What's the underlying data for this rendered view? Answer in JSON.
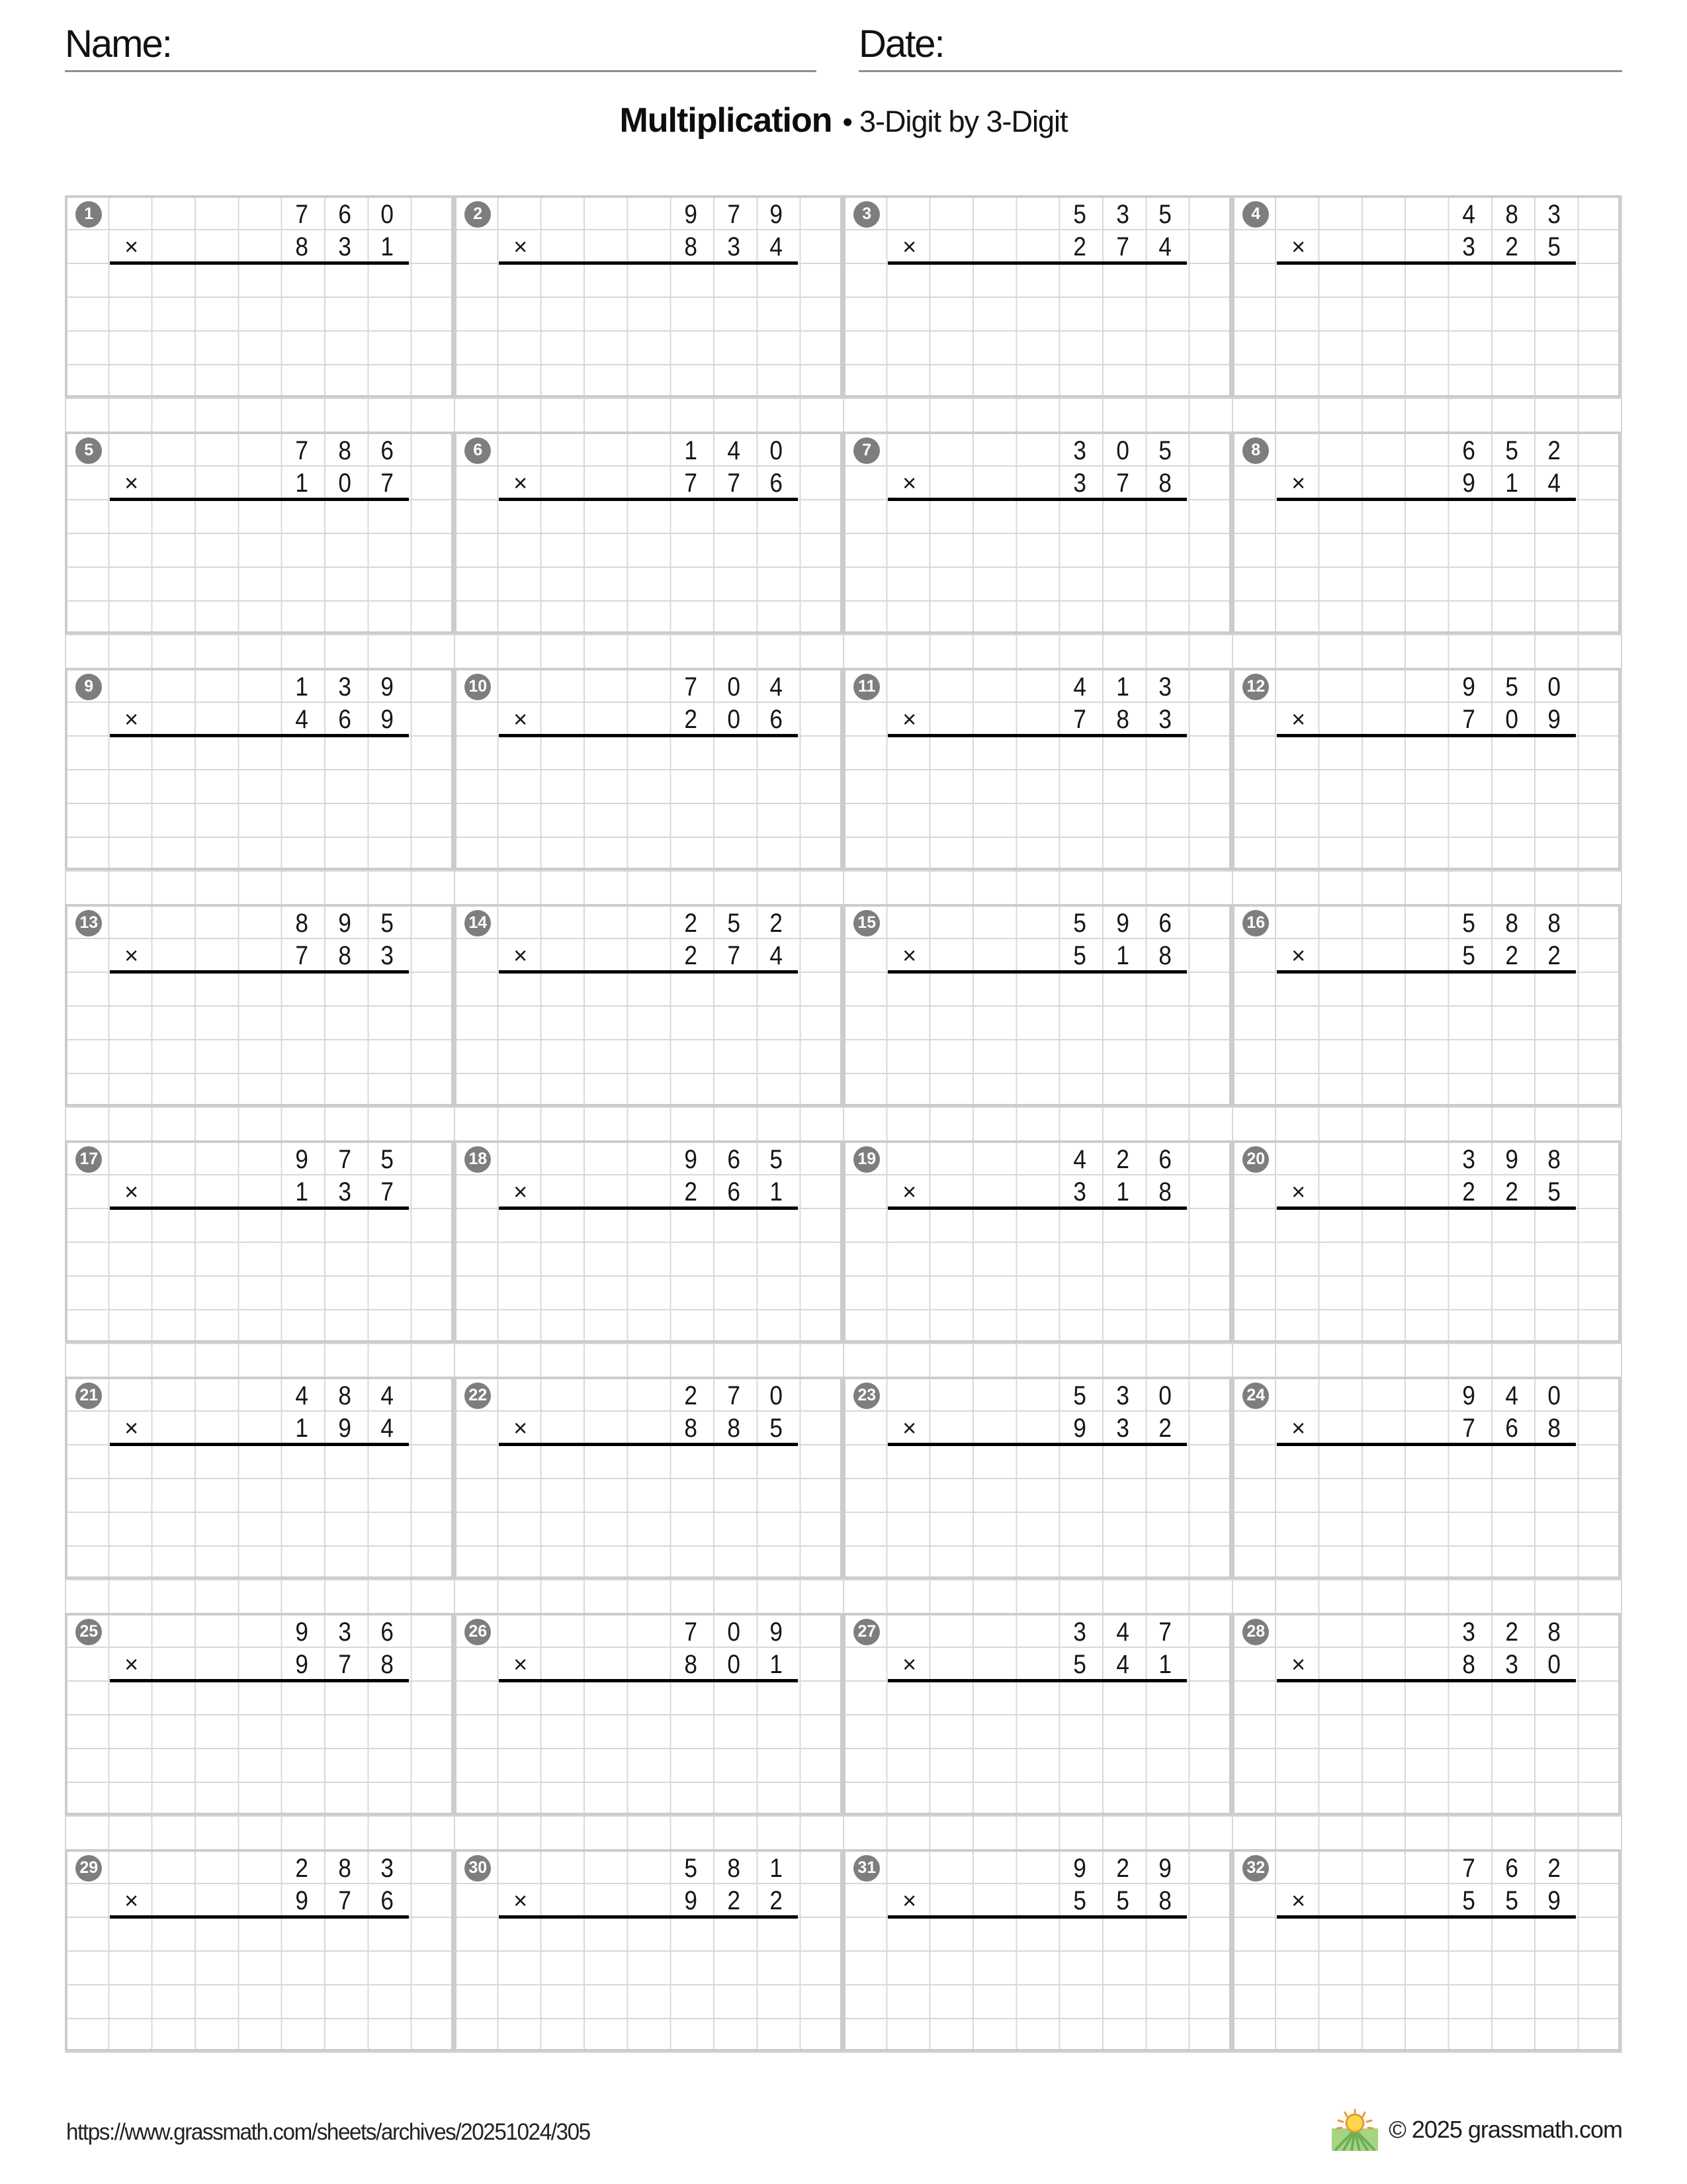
{
  "header": {
    "name_label": "Name:",
    "date_label": "Date:"
  },
  "title": {
    "main": "Multiplication",
    "separator": "•",
    "subtitle": "3-Digit by 3-Digit"
  },
  "worksheet": {
    "operator": "×",
    "columns": 4,
    "rows": 8,
    "problems": [
      {
        "num": "1",
        "multiplicand": "760",
        "multiplier": "831"
      },
      {
        "num": "2",
        "multiplicand": "979",
        "multiplier": "834"
      },
      {
        "num": "3",
        "multiplicand": "535",
        "multiplier": "274"
      },
      {
        "num": "4",
        "multiplicand": "483",
        "multiplier": "325"
      },
      {
        "num": "5",
        "multiplicand": "786",
        "multiplier": "107"
      },
      {
        "num": "6",
        "multiplicand": "140",
        "multiplier": "776"
      },
      {
        "num": "7",
        "multiplicand": "305",
        "multiplier": "378"
      },
      {
        "num": "8",
        "multiplicand": "652",
        "multiplier": "914"
      },
      {
        "num": "9",
        "multiplicand": "139",
        "multiplier": "469"
      },
      {
        "num": "10",
        "multiplicand": "704",
        "multiplier": "206"
      },
      {
        "num": "11",
        "multiplicand": "413",
        "multiplier": "783"
      },
      {
        "num": "12",
        "multiplicand": "950",
        "multiplier": "709"
      },
      {
        "num": "13",
        "multiplicand": "895",
        "multiplier": "783"
      },
      {
        "num": "14",
        "multiplicand": "252",
        "multiplier": "274"
      },
      {
        "num": "15",
        "multiplicand": "596",
        "multiplier": "518"
      },
      {
        "num": "16",
        "multiplicand": "588",
        "multiplier": "522"
      },
      {
        "num": "17",
        "multiplicand": "975",
        "multiplier": "137"
      },
      {
        "num": "18",
        "multiplicand": "965",
        "multiplier": "261"
      },
      {
        "num": "19",
        "multiplicand": "426",
        "multiplier": "318"
      },
      {
        "num": "20",
        "multiplicand": "398",
        "multiplier": "225"
      },
      {
        "num": "21",
        "multiplicand": "484",
        "multiplier": "194"
      },
      {
        "num": "22",
        "multiplicand": "270",
        "multiplier": "885"
      },
      {
        "num": "23",
        "multiplicand": "530",
        "multiplier": "932"
      },
      {
        "num": "24",
        "multiplicand": "940",
        "multiplier": "768"
      },
      {
        "num": "25",
        "multiplicand": "936",
        "multiplier": "978"
      },
      {
        "num": "26",
        "multiplicand": "709",
        "multiplier": "801"
      },
      {
        "num": "27",
        "multiplicand": "347",
        "multiplier": "541"
      },
      {
        "num": "28",
        "multiplicand": "328",
        "multiplier": "830"
      },
      {
        "num": "29",
        "multiplicand": "283",
        "multiplier": "976"
      },
      {
        "num": "30",
        "multiplicand": "581",
        "multiplier": "922"
      },
      {
        "num": "31",
        "multiplicand": "929",
        "multiplier": "558"
      },
      {
        "num": "32",
        "multiplicand": "762",
        "multiplier": "559"
      }
    ]
  },
  "footer": {
    "url": "https://www.grassmath.com/sheets/archives/20251024/305",
    "logo_icon": "sun-over-grass-icon",
    "copyright": "© 2025 grassmath.com"
  },
  "colors": {
    "badge_bg": "#7e7e7e",
    "grid_line": "#d8d8d8",
    "block_border": "#cccccc",
    "answer_line": "#000000",
    "rule_line": "#8f8f8f",
    "grass_green": "#a5d483",
    "grass_dark": "#6faf55",
    "sun_yellow": "#f9d84a",
    "sun_orange": "#e8973a"
  }
}
